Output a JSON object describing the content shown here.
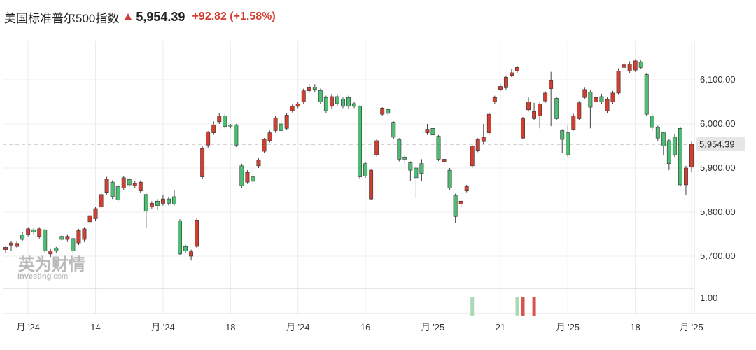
{
  "header": {
    "title": "美国标准普尔500指数",
    "arrow_icon": "up-arrow-icon",
    "price": "5,954.39",
    "change": "+92.82 (+1.58%)"
  },
  "watermark": {
    "line1": "英为财情",
    "line2": "Investing",
    "line2_suffix": ".com"
  },
  "colors": {
    "up": "#d23f31",
    "down": "#4dbd74",
    "grid": "#ececec",
    "current_line": "#555555",
    "badge": "#e6e6e6",
    "vol_up": "#a9d9b5",
    "vol_down": "#d9534f"
  },
  "chart_data": {
    "type": "candlestick",
    "ylim": [
      5650,
      6165
    ],
    "yticks": [
      {
        "value": 5700,
        "label": "5,700.00"
      },
      {
        "value": 5800,
        "label": "5,800.00"
      },
      {
        "value": 5900,
        "label": "5,900.00"
      },
      {
        "value": 6000,
        "label": "6,000.00"
      },
      {
        "value": 6100,
        "label": "6,100.00"
      }
    ],
    "current": {
      "value": 5954.39,
      "label": "5,954.39"
    },
    "xticks": [
      {
        "index": 4,
        "label": "月 '24"
      },
      {
        "index": 16,
        "label": "14"
      },
      {
        "index": 28,
        "label": "月 '24"
      },
      {
        "index": 40,
        "label": "18"
      },
      {
        "index": 52,
        "label": "月 '24"
      },
      {
        "index": 64,
        "label": "16"
      },
      {
        "index": 76,
        "label": "月 '25"
      },
      {
        "index": 88,
        "label": "21"
      },
      {
        "index": 100,
        "label": "月 '25"
      },
      {
        "index": 112,
        "label": "18"
      },
      {
        "index": 122,
        "label": "月 '25"
      }
    ],
    "volume_axis": {
      "label": "1.00"
    },
    "candles": [
      [
        5715,
        5720,
        5708,
        5722
      ],
      [
        5725,
        5730,
        5712,
        5735
      ],
      [
        5722,
        5729,
        5718,
        5734
      ],
      [
        5748,
        5738,
        5735,
        5755
      ],
      [
        5750,
        5762,
        5745,
        5766
      ],
      [
        5760,
        5755,
        5750,
        5764
      ],
      [
        5745,
        5762,
        5740,
        5766
      ],
      [
        5760,
        5712,
        5708,
        5762
      ],
      [
        5705,
        5712,
        5698,
        5716
      ],
      [
        5718,
        5712,
        5708,
        5721
      ],
      [
        5745,
        5738,
        5733,
        5749
      ],
      [
        5738,
        5745,
        5732,
        5750
      ],
      [
        5740,
        5712,
        5708,
        5745
      ],
      [
        5730,
        5758,
        5725,
        5762
      ],
      [
        5738,
        5762,
        5732,
        5766
      ],
      [
        5778,
        5792,
        5774,
        5796
      ],
      [
        5785,
        5808,
        5780,
        5812
      ],
      [
        5812,
        5840,
        5808,
        5846
      ],
      [
        5845,
        5875,
        5840,
        5880
      ],
      [
        5868,
        5835,
        5830,
        5872
      ],
      [
        5858,
        5828,
        5823,
        5862
      ],
      [
        5855,
        5878,
        5850,
        5882
      ],
      [
        5874,
        5862,
        5857,
        5878
      ],
      [
        5860,
        5865,
        5855,
        5870
      ],
      [
        5848,
        5868,
        5843,
        5872
      ],
      [
        5840,
        5802,
        5765,
        5842
      ],
      [
        5812,
        5820,
        5808,
        5825
      ],
      [
        5825,
        5815,
        5805,
        5830
      ],
      [
        5820,
        5830,
        5815,
        5840
      ],
      [
        5830,
        5820,
        5815,
        5834
      ],
      [
        5835,
        5818,
        5815,
        5850
      ],
      [
        5780,
        5705,
        5702,
        5784
      ],
      [
        5722,
        5712,
        5707,
        5726
      ],
      [
        5700,
        5710,
        5690,
        5715
      ],
      [
        5722,
        5782,
        5718,
        5786
      ],
      [
        5880,
        5944,
        5876,
        5950
      ],
      [
        5952,
        5982,
        5946,
        5984
      ],
      [
        5980,
        5998,
        5975,
        6006
      ],
      [
        6005,
        6018,
        6000,
        6024
      ],
      [
        6018,
        5994,
        5990,
        6022
      ],
      [
        5998,
        5995,
        5990,
        6000
      ],
      [
        5998,
        5952,
        5948,
        6000
      ],
      [
        5905,
        5860,
        5855,
        5910
      ],
      [
        5868,
        5890,
        5864,
        5895
      ],
      [
        5880,
        5870,
        5865,
        5902
      ],
      [
        5905,
        5918,
        5900,
        5922
      ],
      [
        5938,
        5965,
        5935,
        5968
      ],
      [
        5962,
        5980,
        5958,
        5985
      ],
      [
        5985,
        6014,
        5980,
        6018
      ],
      [
        6000,
        5985,
        5982,
        6008
      ],
      [
        5990,
        6020,
        5986,
        6024
      ],
      [
        6030,
        6040,
        6026,
        6044
      ],
      [
        6040,
        6045,
        6036,
        6050
      ],
      [
        6050,
        6075,
        6046,
        6080
      ],
      [
        6075,
        6082,
        6070,
        6090
      ],
      [
        6083,
        6078,
        6072,
        6090
      ],
      [
        6076,
        6050,
        6046,
        6080
      ],
      [
        6060,
        6030,
        6025,
        6064
      ],
      [
        6040,
        6062,
        6035,
        6068
      ],
      [
        6062,
        6046,
        6040,
        6066
      ],
      [
        6056,
        6040,
        6036,
        6060
      ],
      [
        6060,
        6040,
        6035,
        6064
      ],
      [
        6046,
        6040,
        6036,
        6050
      ],
      [
        6040,
        5880,
        5876,
        6042
      ],
      [
        5910,
        5882,
        5878,
        5914
      ],
      [
        5830,
        5895,
        5828,
        5898
      ],
      [
        5930,
        5962,
        5926,
        5966
      ],
      [
        6022,
        6036,
        6018,
        6038
      ],
      [
        6033,
        6024,
        6020,
        6036
      ],
      [
        6004,
        5970,
        5966,
        6006
      ],
      [
        5965,
        5920,
        5915,
        5968
      ],
      [
        5925,
        5920,
        5910,
        5930
      ],
      [
        5912,
        5895,
        5870,
        5915
      ],
      [
        5900,
        5878,
        5832,
        5905
      ],
      [
        5910,
        5888,
        5870,
        5920
      ],
      [
        5980,
        5988,
        5975,
        6000
      ],
      [
        5990,
        5975,
        5972,
        5996
      ],
      [
        5972,
        5920,
        5916,
        5975
      ],
      [
        5915,
        5920,
        5910,
        5925
      ],
      [
        5895,
        5855,
        5850,
        5900
      ],
      [
        5838,
        5790,
        5775,
        5842
      ],
      [
        5818,
        5825,
        5810,
        5828
      ],
      [
        5848,
        5858,
        5845,
        5862
      ],
      [
        5905,
        5950,
        5900,
        5955
      ],
      [
        5940,
        5965,
        5936,
        5968
      ],
      [
        5960,
        5970,
        5955,
        6000
      ],
      [
        5980,
        6022,
        5975,
        6026
      ],
      [
        6050,
        6060,
        6046,
        6064
      ],
      [
        6078,
        6085,
        6074,
        6090
      ],
      [
        6082,
        6106,
        6078,
        6110
      ],
      [
        6110,
        6116,
        6106,
        6125
      ],
      [
        6120,
        6128,
        6115,
        6130
      ],
      [
        5968,
        6012,
        5966,
        6016
      ],
      [
        6032,
        6050,
        6028,
        6060
      ],
      [
        6012,
        6028,
        6008,
        6048
      ],
      [
        6018,
        6045,
        5990,
        6050
      ],
      [
        6052,
        6070,
        6048,
        6074
      ],
      [
        6080,
        6098,
        5995,
        6118
      ],
      [
        6058,
        6012,
        6008,
        6062
      ],
      [
        5985,
        5965,
        5935,
        5988
      ],
      [
        5980,
        5930,
        5925,
        5998
      ],
      [
        5988,
        6018,
        5985,
        6023
      ],
      [
        6012,
        6048,
        6008,
        6052
      ],
      [
        6060,
        6078,
        6056,
        6082
      ],
      [
        6072,
        6038,
        5990,
        6076
      ],
      [
        6050,
        6060,
        6045,
        6066
      ],
      [
        6062,
        6050,
        6045,
        6068
      ],
      [
        6030,
        6055,
        6025,
        6060
      ],
      [
        6050,
        6070,
        6046,
        6075
      ],
      [
        6070,
        6120,
        6066,
        6126
      ],
      [
        6128,
        6134,
        6124,
        6138
      ],
      [
        6120,
        6136,
        6115,
        6142
      ],
      [
        6122,
        6143,
        6118,
        6145
      ],
      [
        6140,
        6128,
        6125,
        6144
      ],
      [
        6112,
        6022,
        6018,
        6116
      ],
      [
        6018,
        5992,
        5985,
        6022
      ],
      [
        5992,
        5968,
        5962,
        5996
      ],
      [
        5980,
        5950,
        5930,
        5982
      ],
      [
        5962,
        5910,
        5895,
        5966
      ],
      [
        5970,
        5930,
        5925,
        5976
      ],
      [
        5990,
        5862,
        5858,
        5992
      ],
      [
        5862,
        5900,
        5838,
        5905
      ],
      [
        5902,
        5954,
        5890,
        5960
      ]
    ],
    "volume": [
      {
        "index": 83,
        "dir": "up"
      },
      {
        "index": 91,
        "dir": "up"
      },
      {
        "index": 92,
        "dir": "down"
      },
      {
        "index": 94,
        "dir": "down"
      }
    ]
  }
}
